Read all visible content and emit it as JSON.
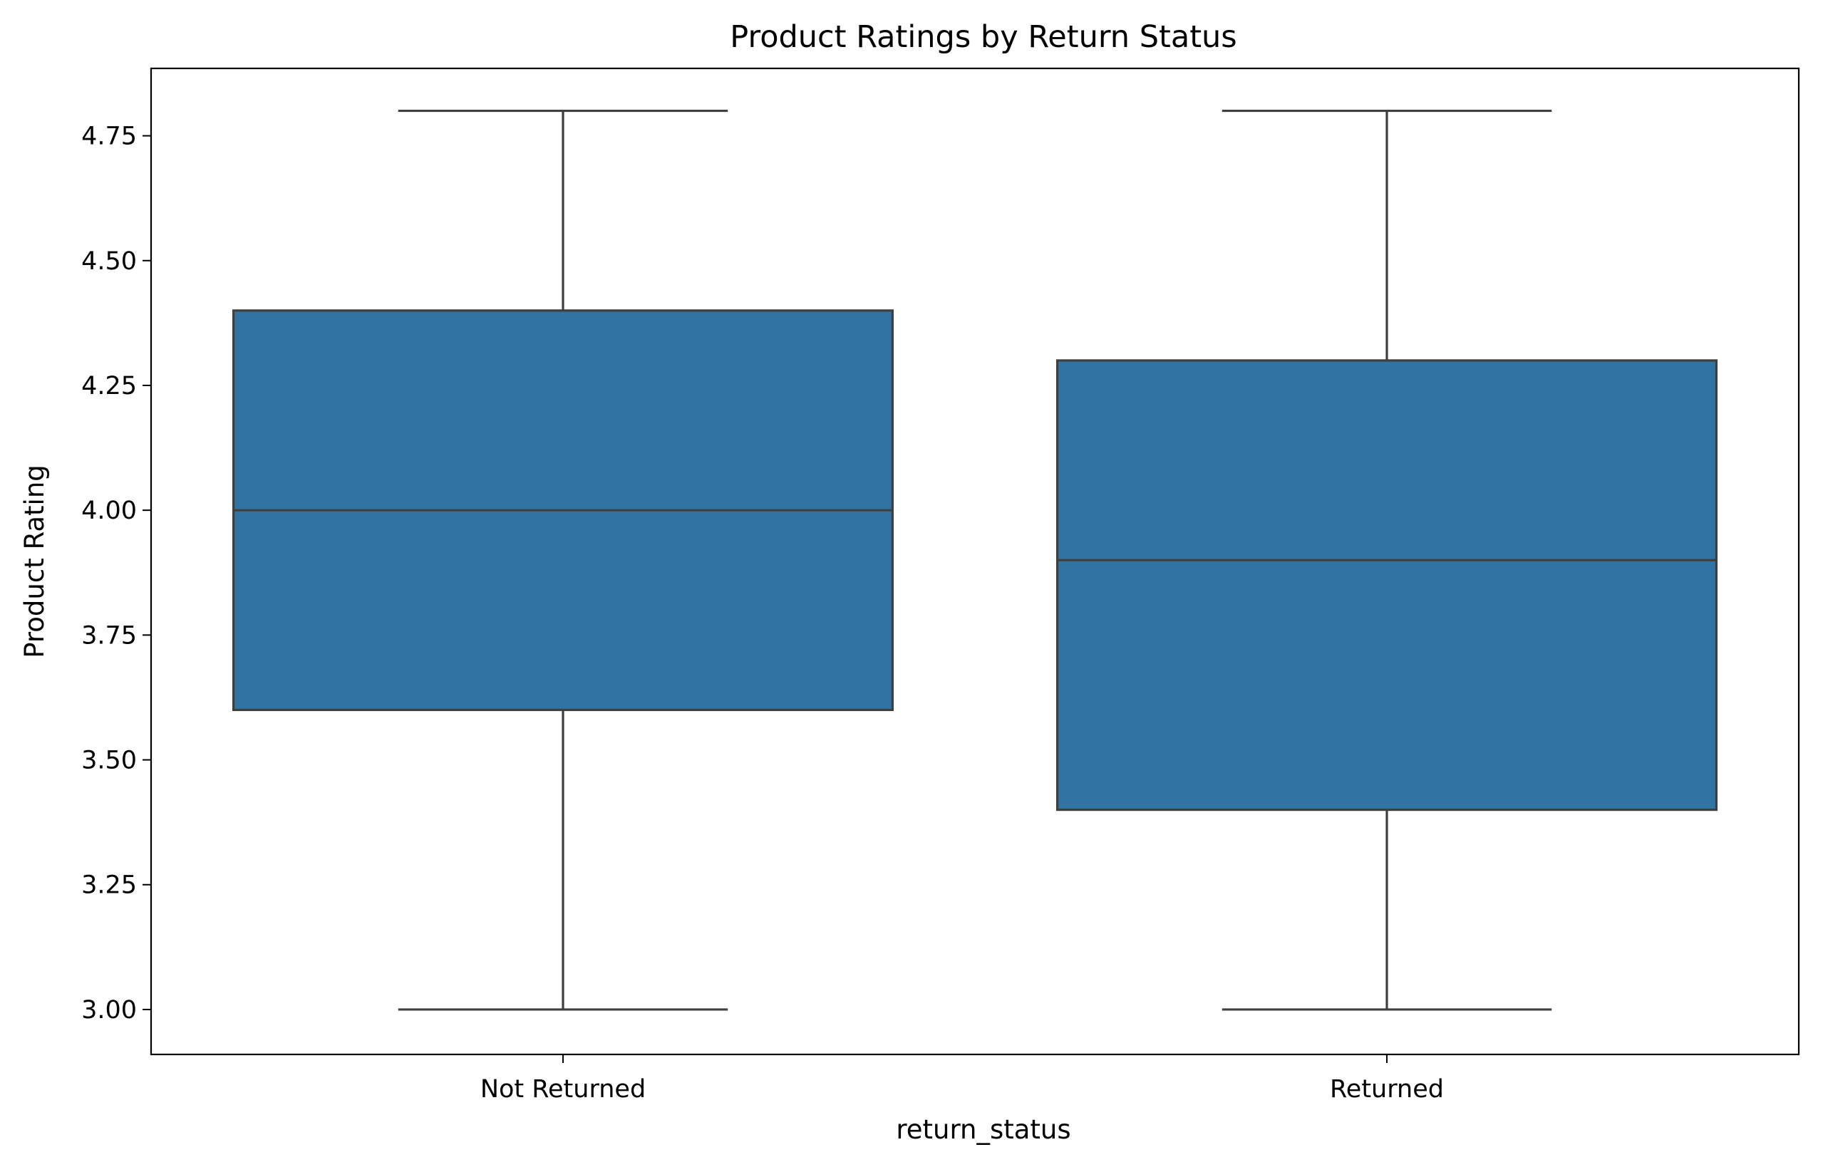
{
  "chart_data": {
    "type": "box",
    "title": "Product Ratings by Return Status",
    "xlabel": "return_status",
    "ylabel": "Product Rating",
    "ylim": [
      2.91,
      4.885
    ],
    "yticks": [
      3.0,
      3.25,
      3.5,
      3.75,
      4.0,
      4.25,
      4.5,
      4.75
    ],
    "ytick_labels": [
      "3.00",
      "3.25",
      "3.50",
      "3.75",
      "4.00",
      "4.25",
      "4.50",
      "4.75"
    ],
    "categories": [
      "Not Returned",
      "Returned"
    ],
    "boxes": [
      {
        "category": "Not Returned",
        "whisker_low": 3.0,
        "q1": 3.6,
        "median": 4.0,
        "q3": 4.4,
        "whisker_high": 4.8
      },
      {
        "category": "Returned",
        "whisker_low": 3.0,
        "q1": 3.4,
        "median": 3.9,
        "q3": 4.3,
        "whisker_high": 4.8
      }
    ],
    "box_color": "#3274a1",
    "line_color": "#3f3f3f",
    "grid": false,
    "legend": "none"
  }
}
